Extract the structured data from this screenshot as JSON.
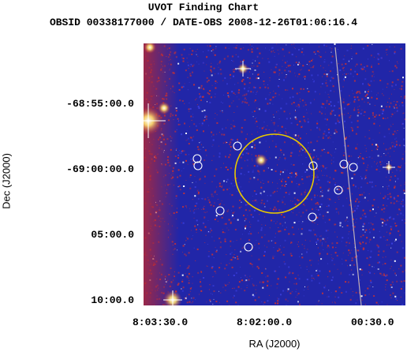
{
  "chart_data": {
    "type": "image",
    "title": "UVOT Finding Chart",
    "subtitle": "OBSID 00338177000 / DATE-OBS 2008-12-26T01:06:16.4",
    "xlabel": "RA (J2000)",
    "ylabel": "Dec (J2000)",
    "x_ticks": [
      "8:03:30.0",
      "8:02:00.0",
      "00:30.0"
    ],
    "y_ticks": [
      "-68:55:00.0",
      "-69:00:00.0",
      "05:00.0",
      "10:00.0"
    ],
    "error_circle_color": "#e8c800",
    "source_marker_color": "#ffffff",
    "background_colors": [
      "#1a1fb0",
      "#c0303a",
      "#ffffff"
    ]
  }
}
